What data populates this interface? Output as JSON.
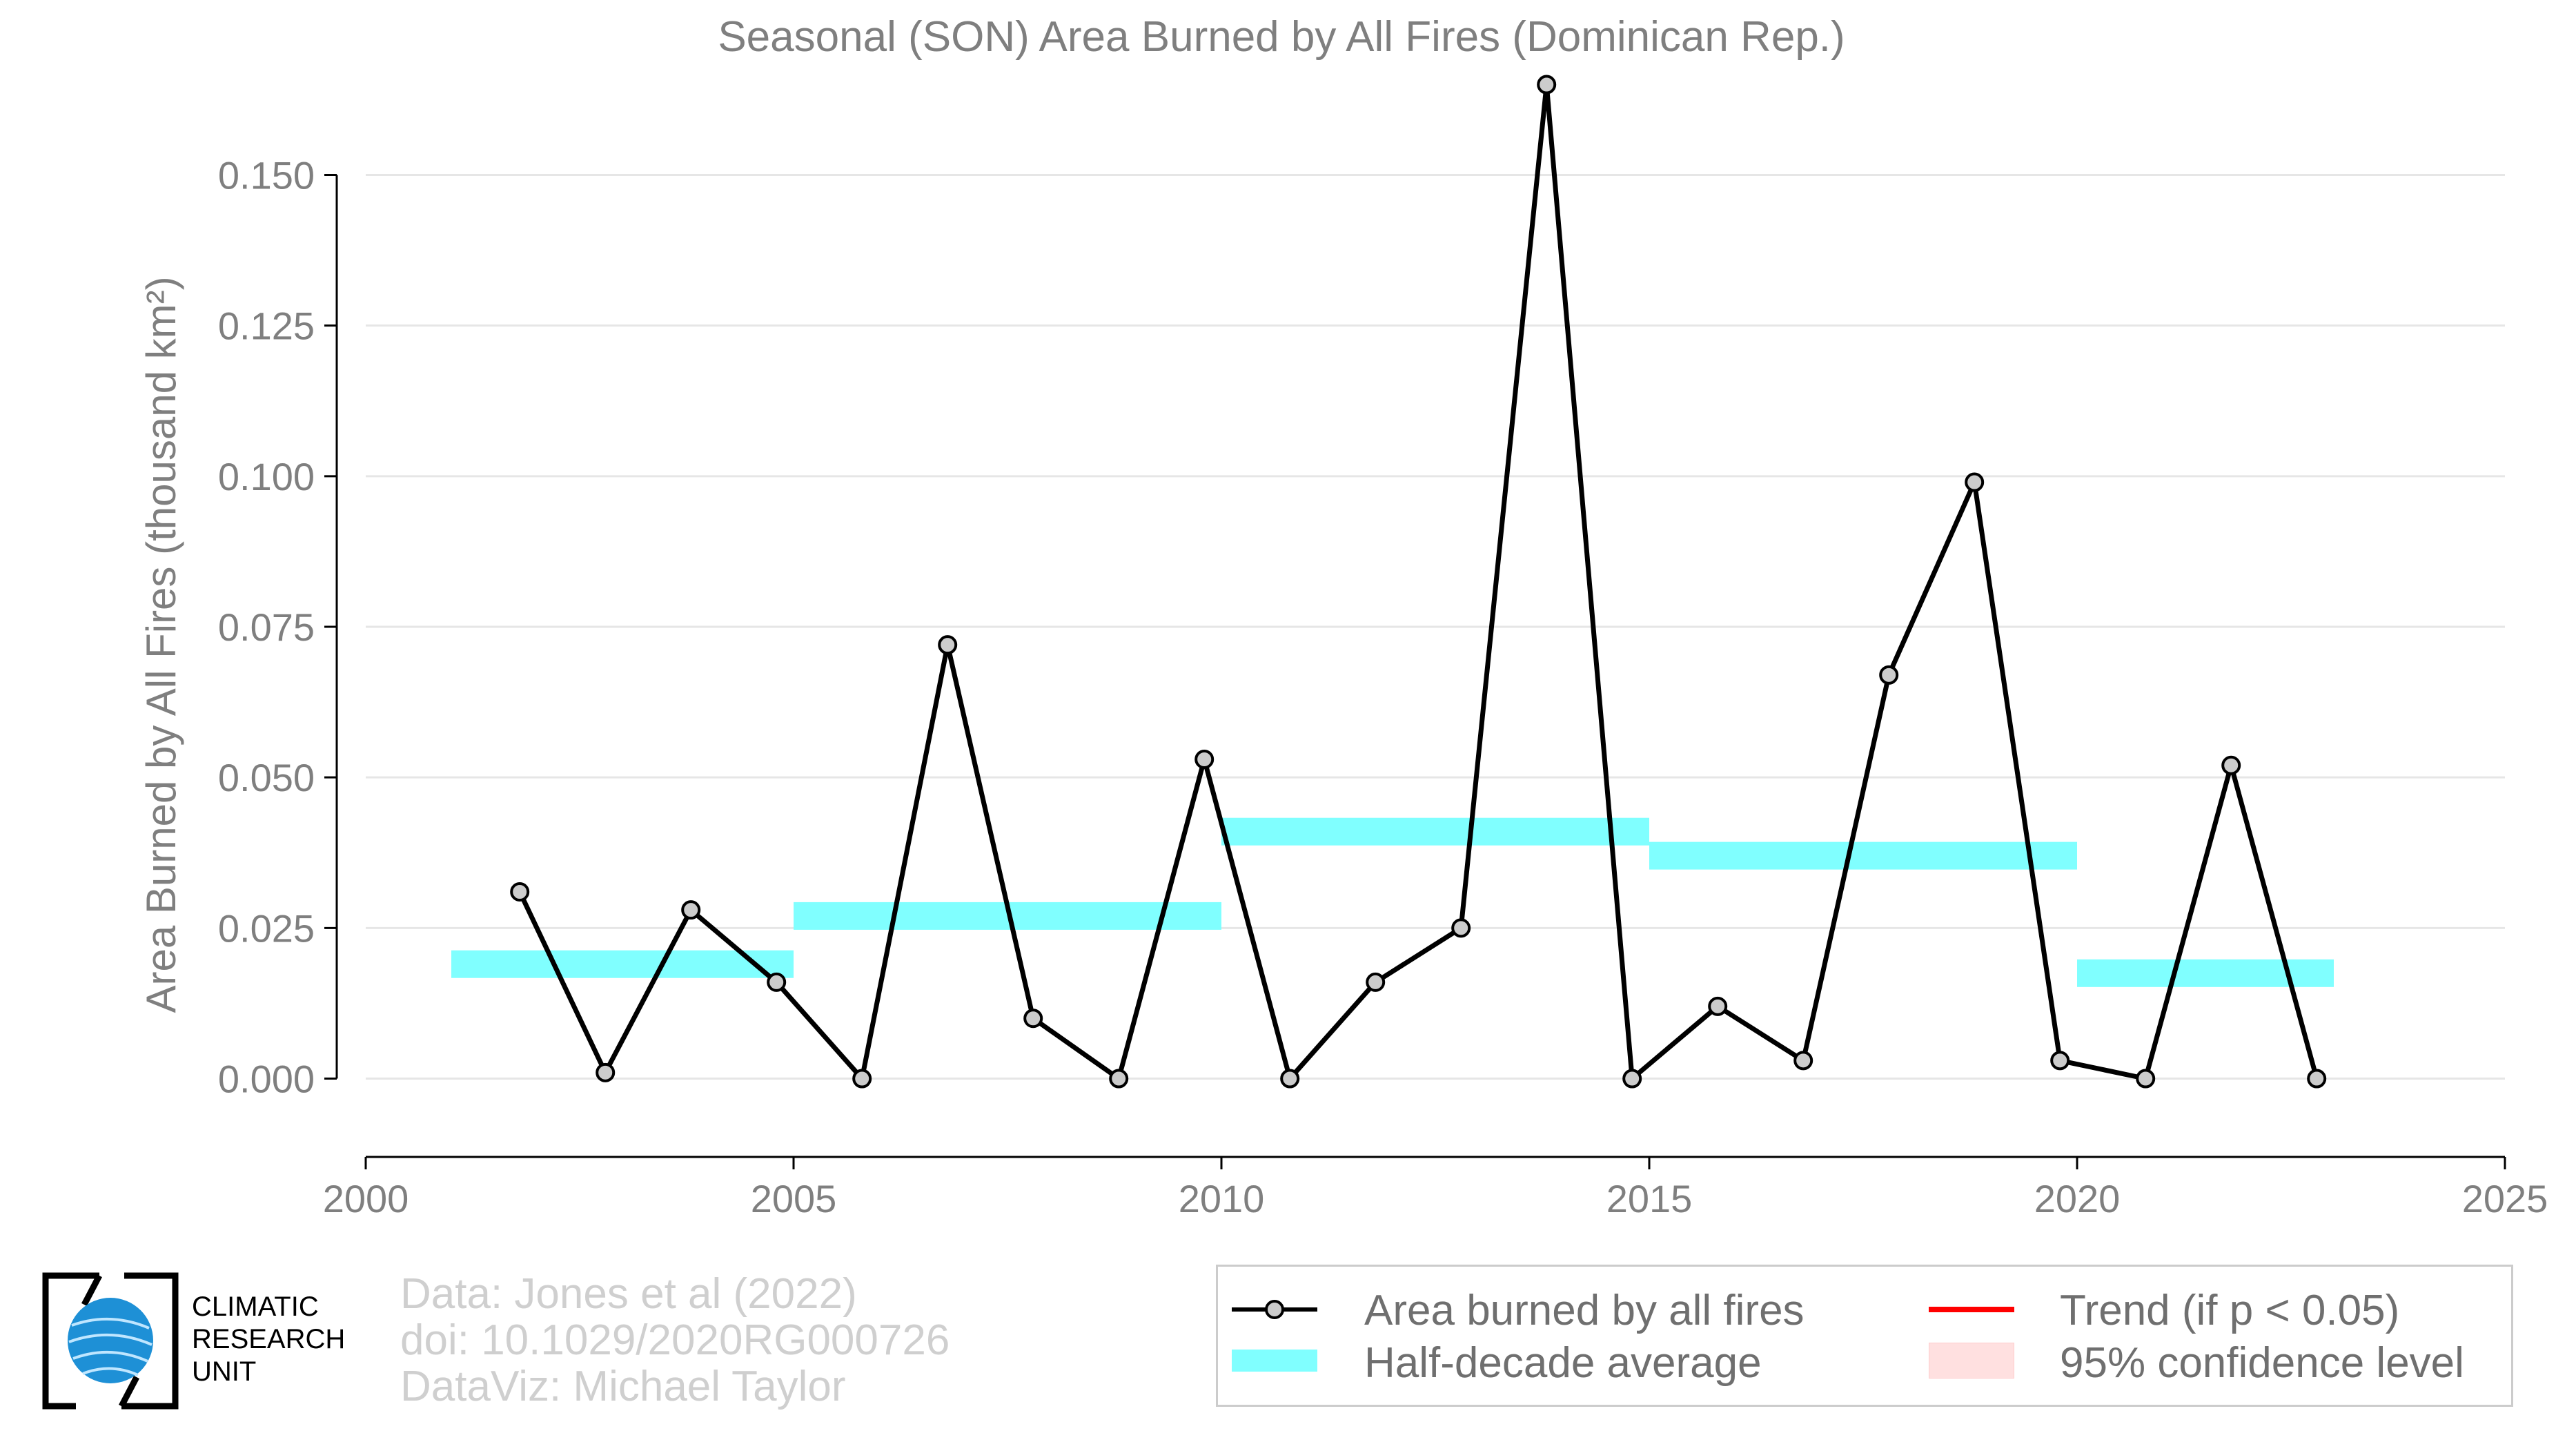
{
  "chart_data": {
    "type": "line",
    "title": "Seasonal (SON) Area Burned by All Fires (Dominican Rep.)",
    "ylabel": "Area Burned by All Fires (thousand km²)",
    "xlabel": "",
    "xlim": [
      2000,
      2025
    ],
    "ylim": [
      -0.013,
      0.163
    ],
    "xticks": [
      2000,
      2005,
      2010,
      2015,
      2020,
      2025
    ],
    "xtick_labels": [
      "2000",
      "2005",
      "2010",
      "2015",
      "2020",
      "2025"
    ],
    "yticks": [
      0.0,
      0.025,
      0.05,
      0.075,
      0.1,
      0.125,
      0.15
    ],
    "ytick_labels": [
      "0.000",
      "0.025",
      "0.050",
      "0.075",
      "0.100",
      "0.125",
      "0.150"
    ],
    "grid": "horizontal",
    "series": [
      {
        "name": "Area burned by all fires",
        "color": "#000000",
        "marker_fill": "#cccccc",
        "points": [
          [
            2001.8,
            0.031
          ],
          [
            2002.8,
            0.001
          ],
          [
            2003.8,
            0.028
          ],
          [
            2004.8,
            0.016
          ],
          [
            2005.8,
            0.0
          ],
          [
            2006.8,
            0.072
          ],
          [
            2007.8,
            0.01
          ],
          [
            2008.8,
            0.0
          ],
          [
            2009.8,
            0.053
          ],
          [
            2010.8,
            0.0
          ],
          [
            2011.8,
            0.016
          ],
          [
            2012.8,
            0.025
          ],
          [
            2013.8,
            0.165
          ],
          [
            2014.8,
            0.0
          ],
          [
            2015.8,
            0.012
          ],
          [
            2016.8,
            0.003
          ],
          [
            2017.8,
            0.067
          ],
          [
            2018.8,
            0.099
          ],
          [
            2019.8,
            0.003
          ],
          [
            2020.8,
            0.0
          ],
          [
            2021.8,
            0.052
          ],
          [
            2022.8,
            0.0
          ]
        ]
      },
      {
        "name": "Half-decade average",
        "color": "#80ffff",
        "segments": [
          {
            "x0": 2001,
            "x1": 2005,
            "y": 0.019
          },
          {
            "x0": 2005,
            "x1": 2010,
            "y": 0.027
          },
          {
            "x0": 2010,
            "x1": 2015,
            "y": 0.041
          },
          {
            "x0": 2015,
            "x1": 2020,
            "y": 0.037
          },
          {
            "x0": 2020,
            "x1": 2023,
            "y": 0.0175
          }
        ]
      }
    ],
    "legend": {
      "placement": "bottom-right",
      "items": [
        {
          "label": "Area burned by all fires",
          "kind": "line-marker",
          "color": "#000000"
        },
        {
          "label": "Trend (if p < 0.05)",
          "kind": "line",
          "color": "#ff0000"
        },
        {
          "label": "Half-decade average",
          "kind": "band",
          "color": "#80ffff"
        },
        {
          "label": "95% confidence level",
          "kind": "fill",
          "color": "#ffe0e0"
        }
      ]
    }
  },
  "credits": {
    "line1": "Data: Jones et al (2022)",
    "line2": "doi: 10.1029/2020RG000726",
    "line3": "DataViz: Michael Taylor"
  },
  "logo": {
    "line1": "CLIMATIC",
    "line2": "RESEARCH",
    "line3": "UNIT",
    "globe_color": "#1e90d6"
  }
}
